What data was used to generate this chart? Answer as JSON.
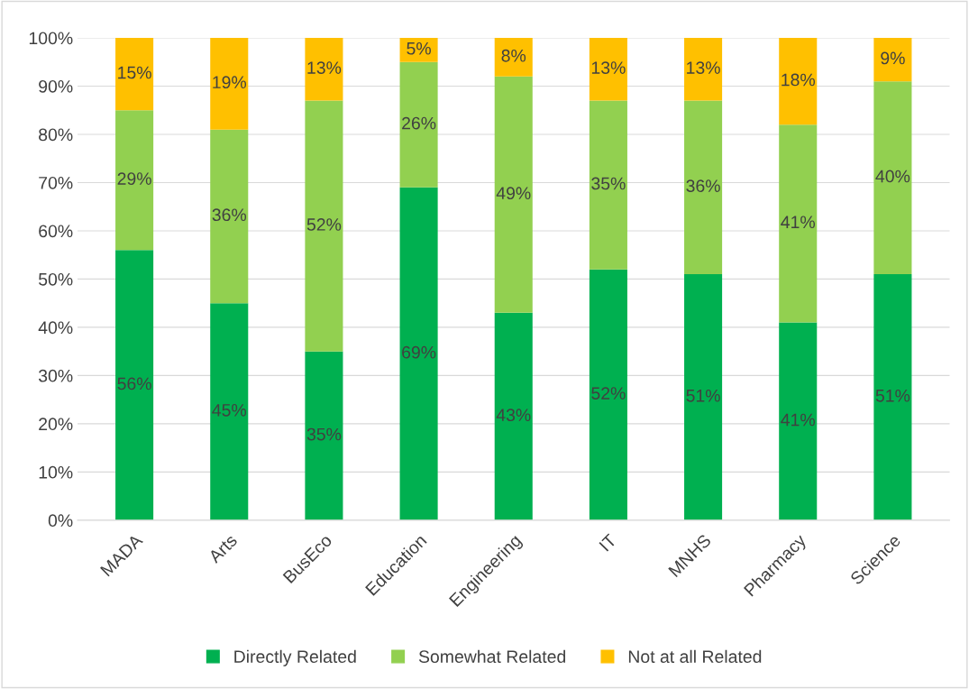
{
  "chart_data": {
    "type": "bar",
    "stacked": true,
    "categories": [
      "MADA",
      "Arts",
      "BusEco",
      "Education",
      "Engineering",
      "IT",
      "MNHS",
      "Pharmacy",
      "Science"
    ],
    "series": [
      {
        "name": "Directly Related",
        "color": "#00b050",
        "values": [
          56,
          45,
          35,
          69,
          43,
          52,
          51,
          41,
          51
        ],
        "value_labels": [
          "56%",
          "45%",
          "35%",
          "69%",
          "43%",
          "52%",
          "51%",
          "41%",
          "51%"
        ]
      },
      {
        "name": "Somewhat Related",
        "color": "#92d050",
        "values": [
          29,
          36,
          52,
          26,
          49,
          35,
          36,
          41,
          40
        ],
        "value_labels": [
          "29%",
          "36%",
          "52%",
          "26%",
          "49%",
          "35%",
          "36%",
          "41%",
          "40%"
        ]
      },
      {
        "name": "Not at all Related",
        "color": "#ffc000",
        "values": [
          15,
          19,
          13,
          5,
          8,
          13,
          13,
          18,
          9
        ],
        "value_labels": [
          "15%",
          "19%",
          "13%",
          "5%",
          "8%",
          "13%",
          "13%",
          "18%",
          "9%"
        ]
      }
    ],
    "ylim": [
      0,
      100
    ],
    "yticks": [
      {
        "value": 0,
        "label": "0%"
      },
      {
        "value": 10,
        "label": "10%"
      },
      {
        "value": 20,
        "label": "20%"
      },
      {
        "value": 30,
        "label": "30%"
      },
      {
        "value": 40,
        "label": "40%"
      },
      {
        "value": 50,
        "label": "50%"
      },
      {
        "value": 60,
        "label": "60%"
      },
      {
        "value": 70,
        "label": "70%"
      },
      {
        "value": 80,
        "label": "80%"
      },
      {
        "value": 90,
        "label": "90%"
      },
      {
        "value": 100,
        "label": "100%"
      }
    ],
    "grid": "y",
    "legend": "bottom"
  }
}
